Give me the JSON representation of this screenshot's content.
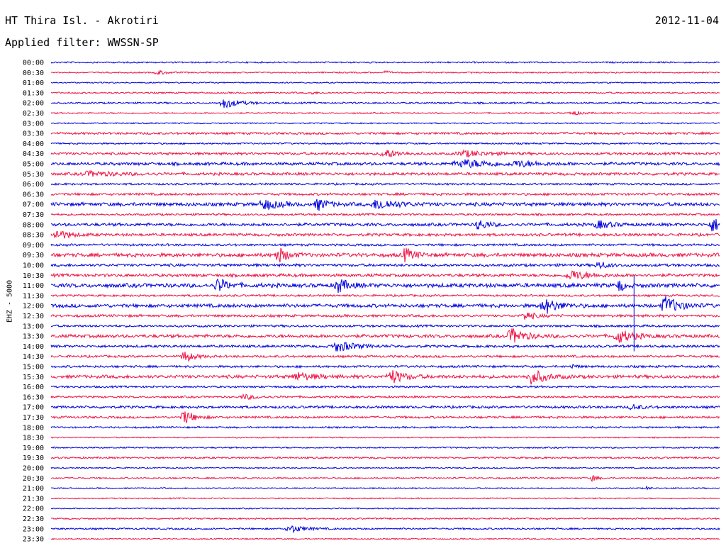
{
  "header": {
    "station": "HT Thira Isl. - Akrotiri",
    "date": "2012-11-04",
    "filter": "Applied filter: WWSSN-SP"
  },
  "chart_data": {
    "type": "line",
    "title": "HT Thira Isl. - Akrotiri",
    "ylabel": "EHZ - 5000",
    "row_labels": [
      "00:00",
      "00:30",
      "01:00",
      "01:30",
      "02:00",
      "02:30",
      "03:00",
      "03:30",
      "04:00",
      "04:30",
      "05:00",
      "05:30",
      "06:00",
      "06:30",
      "07:00",
      "07:30",
      "08:00",
      "08:30",
      "09:00",
      "09:30",
      "10:00",
      "10:30",
      "11:00",
      "11:30",
      "12:00",
      "12:30",
      "13:00",
      "13:30",
      "14:00",
      "14:30",
      "15:00",
      "15:30",
      "16:00",
      "16:30",
      "17:00",
      "17:30",
      "18:00",
      "18:30",
      "19:00",
      "19:30",
      "20:00",
      "20:30",
      "21:00",
      "21:30",
      "22:00",
      "22:30",
      "23:00",
      "23:30"
    ],
    "series_colors": [
      "#0000dd",
      "#ee1144"
    ],
    "trace_noise": [
      1.2,
      1.1,
      1.0,
      1.2,
      1.4,
      1.1,
      1.0,
      1.8,
      1.3,
      2.0,
      2.4,
      2.2,
      1.6,
      1.9,
      2.8,
      1.6,
      2.4,
      2.2,
      1.8,
      3.0,
      2.2,
      2.4,
      3.2,
      1.6,
      2.8,
      2.0,
      1.8,
      2.6,
      2.0,
      1.8,
      1.8,
      2.6,
      1.6,
      1.6,
      2.0,
      1.8,
      1.4,
      1.0,
      1.2,
      1.4,
      1.0,
      1.2,
      1.0,
      1.0,
      1.0,
      1.2,
      1.4,
      1.0
    ],
    "events": [
      {
        "row": 1,
        "x": 0.16,
        "w": 0.02,
        "amp": 3
      },
      {
        "row": 1,
        "x": 0.5,
        "w": 0.01,
        "amp": 2
      },
      {
        "row": 3,
        "x": 0.39,
        "w": 0.01,
        "amp": 2
      },
      {
        "row": 4,
        "x": 0.26,
        "w": 0.03,
        "amp": 7
      },
      {
        "row": 5,
        "x": 0.78,
        "w": 0.02,
        "amp": 3
      },
      {
        "row": 9,
        "x": 0.5,
        "w": 0.03,
        "amp": 6
      },
      {
        "row": 9,
        "x": 0.62,
        "w": 0.05,
        "amp": 4
      },
      {
        "row": 10,
        "x": 0.62,
        "w": 0.07,
        "amp": 5
      },
      {
        "row": 10,
        "x": 0.7,
        "w": 0.04,
        "amp": 3
      },
      {
        "row": 11,
        "x": 0.06,
        "w": 0.06,
        "amp": 3
      },
      {
        "row": 14,
        "x": 0.32,
        "w": 0.03,
        "amp": 7
      },
      {
        "row": 14,
        "x": 0.4,
        "w": 0.02,
        "amp": 8
      },
      {
        "row": 14,
        "x": 0.49,
        "w": 0.04,
        "amp": 7
      },
      {
        "row": 16,
        "x": 0.64,
        "w": 0.02,
        "amp": 7
      },
      {
        "row": 16,
        "x": 0.82,
        "w": 0.03,
        "amp": 5
      },
      {
        "row": 16,
        "x": 0.99,
        "w": 0.02,
        "amp": 10
      },
      {
        "row": 17,
        "x": 0.01,
        "w": 0.03,
        "amp": 6
      },
      {
        "row": 19,
        "x": 0.34,
        "w": 0.02,
        "amp": 11
      },
      {
        "row": 19,
        "x": 0.53,
        "w": 0.02,
        "amp": 9
      },
      {
        "row": 20,
        "x": 0.82,
        "w": 0.02,
        "amp": 5
      },
      {
        "row": 21,
        "x": 0.78,
        "w": 0.04,
        "amp": 6
      },
      {
        "row": 22,
        "x": 0.25,
        "w": 0.02,
        "amp": 10
      },
      {
        "row": 22,
        "x": 0.43,
        "w": 0.02,
        "amp": 10
      },
      {
        "row": 22,
        "x": 0.85,
        "w": 0.01,
        "amp": 9
      },
      {
        "row": 24,
        "x": 0.74,
        "w": 0.03,
        "amp": 10
      },
      {
        "row": 24,
        "x": 0.92,
        "w": 0.03,
        "amp": 12
      },
      {
        "row": 25,
        "x": 0.71,
        "w": 0.02,
        "amp": 6
      },
      {
        "row": 27,
        "x": 0.69,
        "w": 0.03,
        "amp": 10
      },
      {
        "row": 27,
        "x": 0.85,
        "w": 0.03,
        "amp": 9
      },
      {
        "row": 28,
        "x": 0.43,
        "w": 0.04,
        "amp": 7
      },
      {
        "row": 29,
        "x": 0.2,
        "w": 0.02,
        "amp": 8
      },
      {
        "row": 30,
        "x": 0.78,
        "w": 0.01,
        "amp": 3
      },
      {
        "row": 31,
        "x": 0.37,
        "w": 0.04,
        "amp": 5
      },
      {
        "row": 31,
        "x": 0.51,
        "w": 0.03,
        "amp": 9
      },
      {
        "row": 31,
        "x": 0.72,
        "w": 0.03,
        "amp": 10
      },
      {
        "row": 33,
        "x": 0.29,
        "w": 0.03,
        "amp": 3
      },
      {
        "row": 34,
        "x": 0.87,
        "w": 0.02,
        "amp": 4
      },
      {
        "row": 35,
        "x": 0.2,
        "w": 0.02,
        "amp": 10
      },
      {
        "row": 41,
        "x": 0.81,
        "w": 0.01,
        "amp": 5
      },
      {
        "row": 42,
        "x": 0.89,
        "w": 0.01,
        "amp": 2
      },
      {
        "row": 46,
        "x": 0.36,
        "w": 0.03,
        "amp": 5
      }
    ],
    "spikes": [
      {
        "row": 21,
        "x": 0.872,
        "length_rows": 7.5
      }
    ]
  }
}
